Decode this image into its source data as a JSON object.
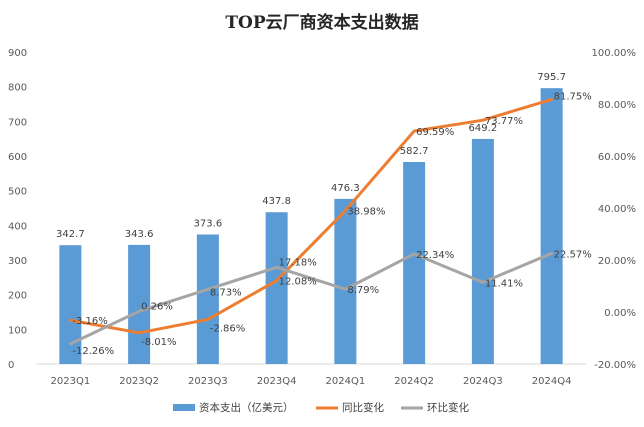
{
  "chart_data": {
    "type": "bar",
    "title": "TOP云厂商资本支出数据",
    "categories": [
      "2023Q1",
      "2023Q2",
      "2023Q3",
      "2023Q4",
      "2024Q1",
      "2024Q2",
      "2024Q3",
      "2024Q4"
    ],
    "y_left": {
      "min": 0,
      "max": 900,
      "step": 100,
      "ticks": [
        "0",
        "100",
        "200",
        "300",
        "400",
        "500",
        "600",
        "700",
        "800",
        "900"
      ]
    },
    "y_right": {
      "min": -20,
      "max": 100,
      "step": 20,
      "ticks": [
        "-20.00%",
        "0.00%",
        "20.00%",
        "40.00%",
        "60.00%",
        "80.00%",
        "100.00%"
      ]
    },
    "grid": false,
    "legend_position": "bottom",
    "series": [
      {
        "name": "资本支出（亿美元）",
        "type": "bar",
        "axis": "left",
        "color": "#5b9bd5",
        "values": [
          342.7,
          343.6,
          373.6,
          437.8,
          476.3,
          582.7,
          649.2,
          795.7
        ],
        "labels": [
          "342.7",
          "343.6",
          "373.6",
          "437.8",
          "476.3",
          "582.7",
          "649.2",
          "795.7"
        ]
      },
      {
        "name": "同比变化",
        "type": "line",
        "axis": "right",
        "color": "#ed7d31",
        "values": [
          -3.16,
          -8.01,
          -2.86,
          12.08,
          38.98,
          69.59,
          73.77,
          81.75
        ],
        "labels": [
          "-3.16%",
          "-8.01%",
          "-2.86%",
          "12.08%",
          "38.98%",
          "69.59%",
          "73.77%",
          "81.75%"
        ]
      },
      {
        "name": "环比变化",
        "type": "line",
        "axis": "right",
        "color": "#a5a5a5",
        "values": [
          -12.26,
          0.26,
          8.73,
          17.18,
          8.79,
          22.34,
          11.41,
          22.57
        ],
        "labels": [
          "-12.26%",
          "0.26%",
          "8.73%",
          "17.18%",
          "8.79%",
          "22.34%",
          "11.41%",
          "22.57%"
        ]
      }
    ]
  }
}
